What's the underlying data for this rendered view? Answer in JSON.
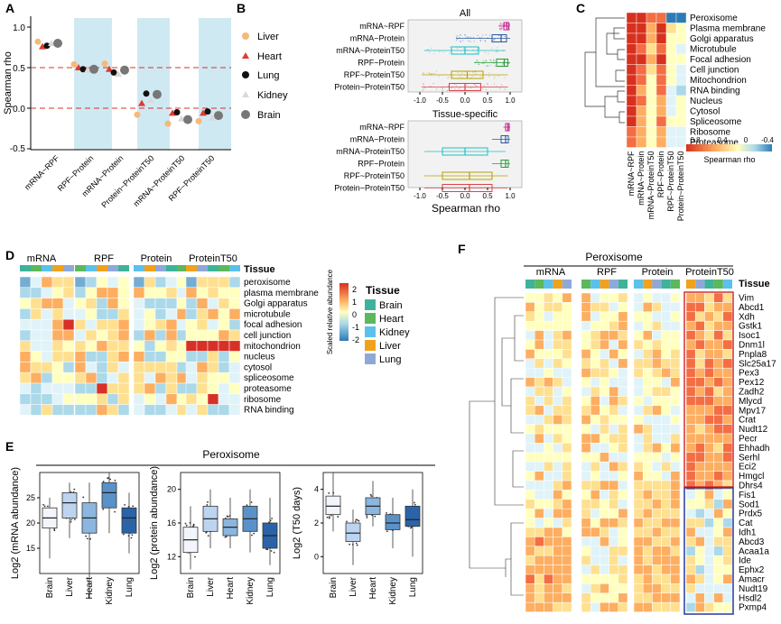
{
  "panels": {
    "A": {
      "letter": "A",
      "ylabel": "Spearman rho",
      "yticks": [
        "1.0",
        "0.5",
        "0.0",
        "-0.5"
      ],
      "categories": [
        "mRNA~RPF",
        "RPF~Protein",
        "mRNA~Protein",
        "Protein~ProteinT50",
        "mRNA~ProteinT50",
        "RPF~ProteinT50"
      ],
      "legend": [
        "Liver",
        "Heart",
        "Lung",
        "Kidney",
        "Brain"
      ]
    },
    "B": {
      "letter": "B",
      "title_all": "All",
      "title_specific": "Tissue-specific",
      "rows": [
        "mRNA~RPF",
        "mRNA~Protein",
        "mRNA~ProteinT50",
        "RPF~Protein",
        "RPF~ProteinT50",
        "Protein~ProteinT50"
      ],
      "xticks": [
        "-1.0",
        "-0.5",
        "0.0",
        "0.5",
        "1.0"
      ],
      "xlabel": "Spearman rho"
    },
    "C": {
      "letter": "C",
      "rows": [
        "Peroxisome",
        "Plasma membrane",
        "Golgi apparatus",
        "Microtubule",
        "Focal adhesion",
        "Cell junction",
        "Mitochondrion",
        "RNA binding",
        "Nucleus",
        "Cytosol",
        "Spliceosome",
        "Ribosome",
        "Proteasome"
      ],
      "cols": [
        "mRNA~RPF",
        "mRNA~Protein",
        "mRNA~ProteinT50",
        "RPF~Protein",
        "RPF~ProteinT50",
        "Protein~ProteinT50"
      ],
      "scale_ticks": [
        "0.8",
        "0.4",
        "0",
        "-0.4"
      ],
      "scale_label": "Spearman rho"
    },
    "D": {
      "letter": "D",
      "groups": [
        "mRNA",
        "RPF",
        "Protein",
        "ProteinT50"
      ],
      "tissue_label": "Tissue",
      "rows": [
        "peroxisome",
        "plasma membrane",
        "Golgi apparatus",
        "microtubule",
        "focal adhesion",
        "cell junction",
        "mitochondrion",
        "nucleus",
        "cytosol",
        "spliceosome",
        "proteasome",
        "ribosome",
        "RNA binding"
      ],
      "scale_ticks": [
        "2",
        "1",
        "0",
        "-1",
        "-2"
      ],
      "scale_label": "Scaled relative abundance",
      "legend_title": "Tissue",
      "legend": [
        "Brain",
        "Heart",
        "Kidney",
        "Liver",
        "Lung"
      ]
    },
    "E": {
      "letter": "E",
      "title": "Peroxisome",
      "ylabels": [
        "Log2 (mRNA abundance)",
        "Log2 (protein abundance)",
        "Log2 (T50 days)"
      ],
      "yticks1": [
        "25",
        "20",
        "15"
      ],
      "yticks2": [
        "20",
        "16",
        "12"
      ],
      "yticks3": [
        "4",
        "2",
        "0"
      ],
      "categories": [
        "Brain",
        "Liver",
        "Heart",
        "Kidney",
        "Lung"
      ]
    },
    "F": {
      "letter": "F",
      "title": "Peroxisome",
      "groups": [
        "mRNA",
        "RPF",
        "Protein",
        "ProteinT50"
      ],
      "tissue_label": "Tissue",
      "genes": [
        "Vim",
        "Abcd1",
        "Xdh",
        "Gstk1",
        "Isoc1",
        "Dnm1l",
        "Pnpla8",
        "Slc25a17",
        "Pex3",
        "Pex12",
        "Zadh2",
        "Mlycd",
        "Mpv17",
        "Crat",
        "Nudt12",
        "Pecr",
        "Ehhadh",
        "Serhl",
        "Eci2",
        "Hmgcl",
        "Dhrs4",
        "Fis1",
        "Sod1",
        "Prdx5",
        "Cat",
        "Idh1",
        "Abcd3",
        "Acaa1a",
        "Ide",
        "Ephx2",
        "Amacr",
        "Nudt19",
        "Hsdl2",
        "Pxmp4"
      ]
    }
  },
  "colors": {
    "Liver": "#f5b97a",
    "Heart": "#e03b2e",
    "Lung": "#111111",
    "Kidney": "#d9d9d9",
    "Brain": "#777777",
    "tissue_Brain": "#3fb39a",
    "tissue_Heart": "#5cb85c",
    "tissue_Kidney": "#5bc0eb",
    "tissue_Liver": "#f0a21e",
    "tissue_Lung": "#8ea9d8"
  }
}
